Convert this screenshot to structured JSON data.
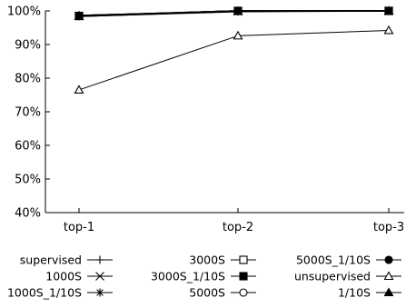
{
  "chart_data": {
    "type": "line",
    "title": "",
    "xlabel": "",
    "ylabel": "",
    "categories": [
      "top-1",
      "top-2",
      "top-3"
    ],
    "ylim": [
      40,
      100
    ],
    "yticks": [
      40,
      50,
      60,
      70,
      80,
      90,
      100
    ],
    "ytick_labels": [
      "40%",
      "50%",
      "60%",
      "70%",
      "80%",
      "90%",
      "100%"
    ],
    "grid": false,
    "legend_position": "bottom",
    "series": [
      {
        "name": "supervised",
        "marker": "plus",
        "values": [
          98.7,
          99.9,
          100.0
        ]
      },
      {
        "name": "1000S",
        "marker": "x",
        "values": [
          98.5,
          99.9,
          100.0
        ]
      },
      {
        "name": "1000S_1/10S",
        "marker": "asterisk",
        "values": [
          98.4,
          99.8,
          100.0
        ]
      },
      {
        "name": "3000S",
        "marker": "square-open",
        "values": [
          98.5,
          100.0,
          100.0
        ]
      },
      {
        "name": "3000S_1/10S",
        "marker": "square-filled",
        "values": [
          98.5,
          100.0,
          100.0
        ]
      },
      {
        "name": "5000S",
        "marker": "circle-open",
        "values": [
          98.6,
          100.0,
          100.0
        ]
      },
      {
        "name": "5000S_1/10S",
        "marker": "circle-filled",
        "values": [
          98.6,
          100.0,
          100.0
        ]
      },
      {
        "name": "unsupervised",
        "marker": "triangle-open",
        "values": [
          76.5,
          92.6,
          94.2
        ]
      },
      {
        "name": "1/10S",
        "marker": "triangle-filled",
        "values": [
          98.4,
          99.9,
          100.0
        ]
      }
    ]
  }
}
